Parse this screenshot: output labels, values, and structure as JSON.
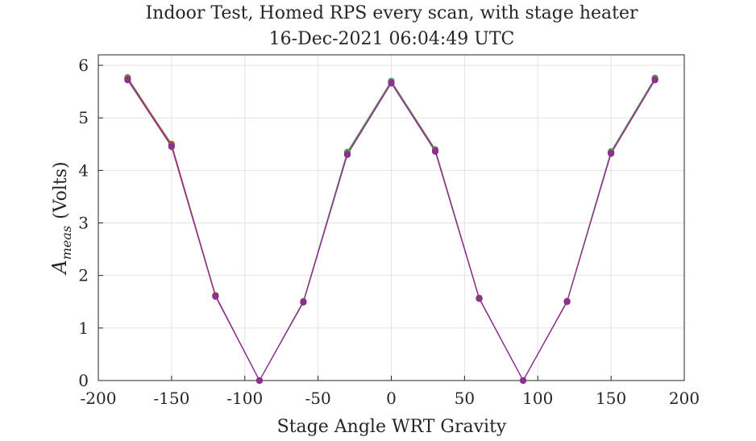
{
  "chart_data": {
    "type": "line",
    "title": "Indoor Test, Homed RPS every scan, with stage heater",
    "subtitle": "16-Dec-2021 06:04:49 UTC",
    "xlabel": "Stage Angle WRT Gravity",
    "ylabel_main": "A",
    "ylabel_sub": "meas",
    "ylabel_units": "(Volts)",
    "xlim": [
      -200,
      200
    ],
    "ylim": [
      0,
      6.2
    ],
    "xticks": [
      -200,
      -150,
      -100,
      -50,
      0,
      50,
      100,
      150,
      200
    ],
    "yticks": [
      0,
      1,
      2,
      3,
      4,
      5,
      6
    ],
    "grid": true,
    "x": [
      -180,
      -150,
      -120,
      -90,
      -60,
      -30,
      0,
      30,
      60,
      90,
      120,
      150,
      180
    ],
    "series": [
      {
        "color": "#4b8a8a",
        "values": [
          5.77,
          4.48,
          1.62,
          0.0,
          1.51,
          4.35,
          5.7,
          4.4,
          1.57,
          0.0,
          1.51,
          4.36,
          5.76
        ]
      },
      {
        "color": "#5a9a5a",
        "values": [
          5.76,
          4.47,
          1.61,
          0.0,
          1.5,
          4.34,
          5.69,
          4.39,
          1.56,
          0.0,
          1.5,
          4.35,
          5.75
        ]
      },
      {
        "color": "#a84b3c",
        "values": [
          5.74,
          4.5,
          1.62,
          0.0,
          1.5,
          4.31,
          5.67,
          4.38,
          1.57,
          0.0,
          1.51,
          4.33,
          5.73
        ]
      },
      {
        "color": "#8a2a9a",
        "values": [
          5.72,
          4.45,
          1.6,
          0.0,
          1.49,
          4.3,
          5.66,
          4.36,
          1.56,
          0.0,
          1.5,
          4.32,
          5.72
        ]
      }
    ]
  }
}
